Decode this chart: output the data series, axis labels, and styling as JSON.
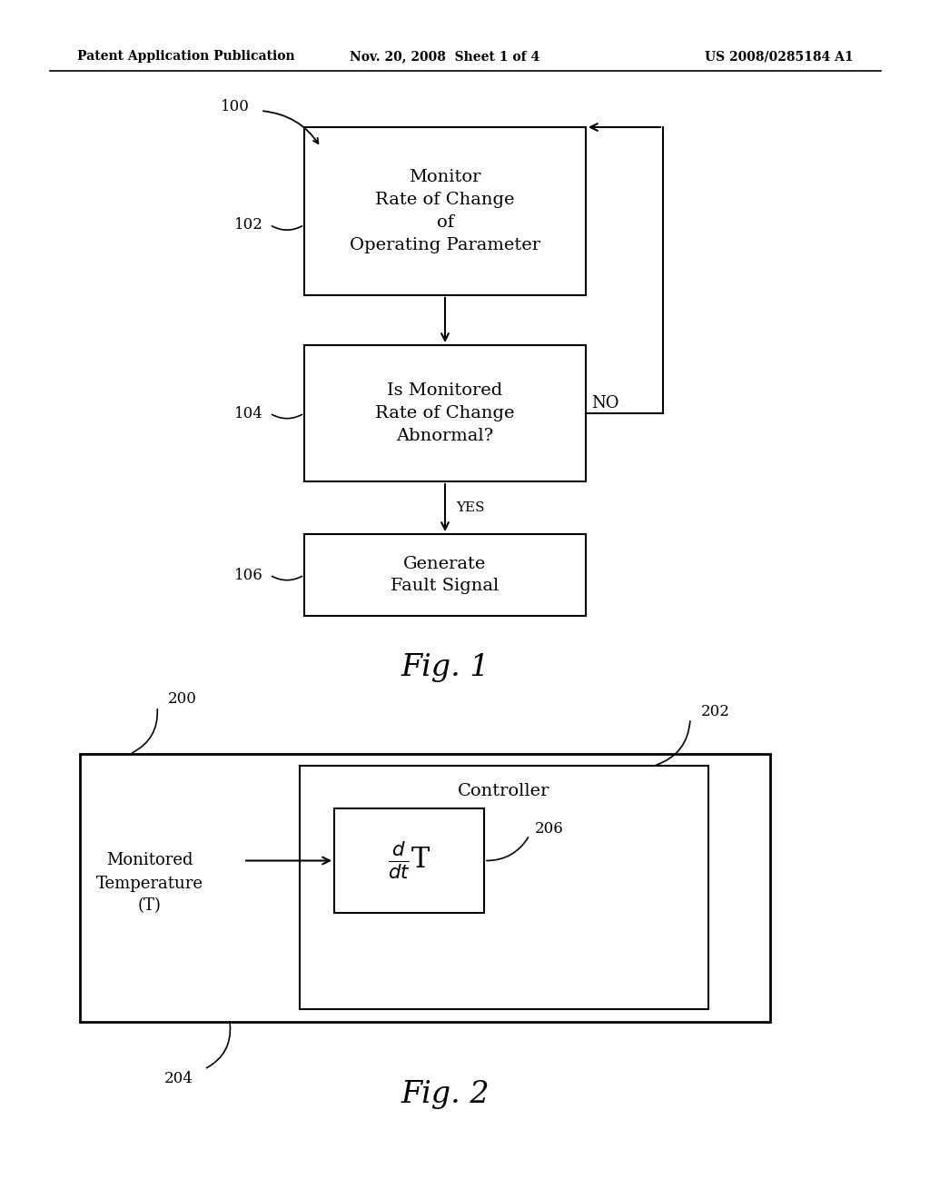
{
  "bg_color": "#ffffff",
  "header_left": "Patent Application Publication",
  "header_center": "Nov. 20, 2008  Sheet 1 of 4",
  "header_right": "US 2008/0285184 A1",
  "fig1_title": "Fig. 1",
  "fig2_title": "Fig. 2",
  "box1_text": "Monitor\nRate of Change\nof\nOperating Parameter",
  "box2_text": "Is Monitored\nRate of Change\nAbnormal?",
  "box3_text": "Generate\nFault Signal",
  "label_100": "100",
  "label_102": "102",
  "label_104": "104",
  "label_106": "106",
  "label_yes": "YES",
  "label_no": "NO",
  "label_200": "200",
  "label_202": "202",
  "label_204": "204",
  "label_206": "206",
  "fig2_outer_label": "Monitored\nTemperature\n(T)",
  "fig2_controller_label": "Controller"
}
